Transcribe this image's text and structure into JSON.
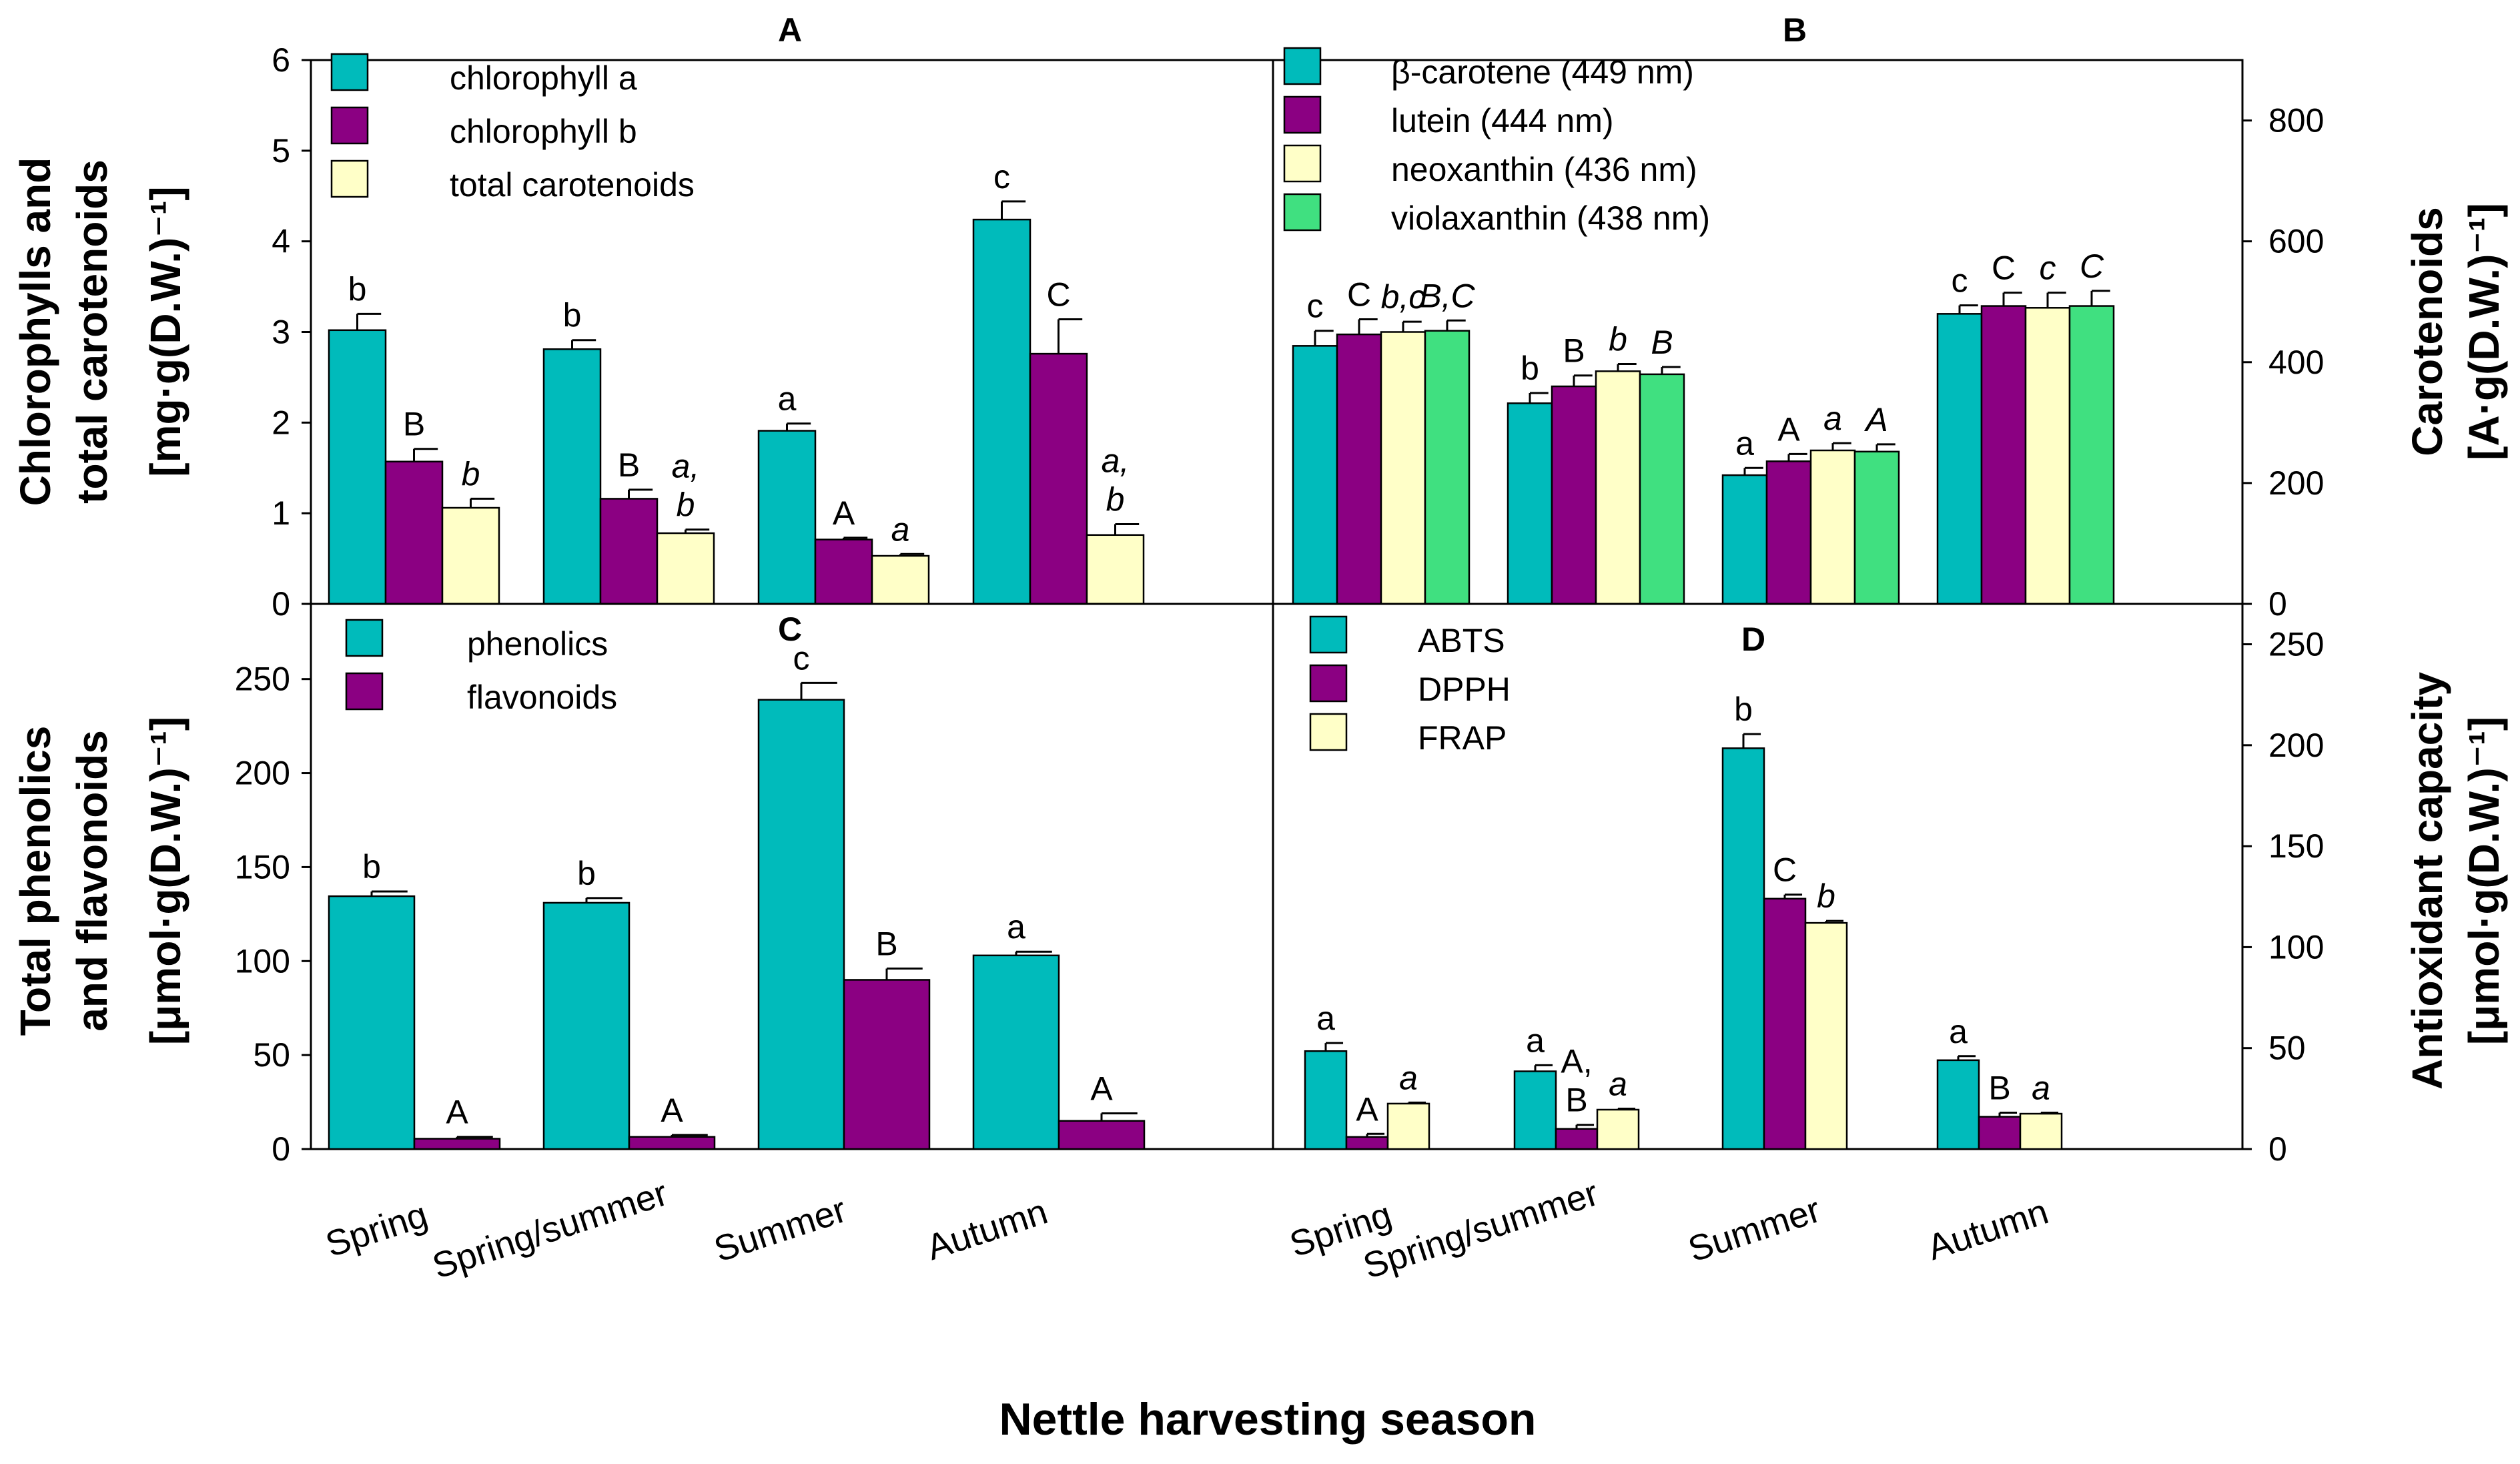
{
  "figure": {
    "x_title": "Nettle harvesting season",
    "colors": {
      "teal": "#00BBBB",
      "purple": "#8B0082",
      "cream": "#FFFFC8",
      "green": "#40E080"
    }
  },
  "chart_data": [
    {
      "id": "A",
      "type": "bar",
      "title": "A",
      "ylabel": [
        "Chlorophylls and",
        "total carotenoids",
        "[mg·g(D.W.)⁻¹]"
      ],
      "axis_side": "left",
      "ylim": [
        0,
        6
      ],
      "yticks": [
        "0",
        "1",
        "2",
        "3",
        "4",
        "5",
        "6"
      ],
      "categories": [
        "Spring",
        "Spring/summer",
        "Summer",
        "Autumn"
      ],
      "series": [
        {
          "name": "chlorophyll a",
          "color": "#00BBBB",
          "values": [
            3.02,
            2.81,
            1.91,
            4.24
          ],
          "errors": [
            0.18,
            0.1,
            0.08,
            0.2
          ],
          "labels": [
            "b",
            "b",
            "a",
            "c"
          ],
          "italic": false
        },
        {
          "name": "chlorophyll b",
          "color": "#8B0082",
          "values": [
            1.57,
            1.16,
            0.71,
            2.76
          ],
          "errors": [
            0.14,
            0.1,
            0.02,
            0.38
          ],
          "labels": [
            "B",
            "B",
            "A",
            "C"
          ],
          "italic": false
        },
        {
          "name": "total carotenoids",
          "color": "#FFFFC8",
          "values": [
            1.06,
            0.78,
            0.53,
            0.76
          ],
          "errors": [
            0.1,
            0.04,
            0.02,
            0.12
          ],
          "labels": [
            "b",
            "a,|b",
            "a",
            "a,|b"
          ],
          "italic": true
        }
      ]
    },
    {
      "id": "B",
      "type": "bar",
      "title": "B",
      "ylabel": [
        "Carotenoids",
        "[A·g(D.W.)⁻¹]"
      ],
      "axis_side": "right",
      "ylim": [
        0,
        900
      ],
      "yticks": [
        "0",
        "200",
        "400",
        "600",
        "800"
      ],
      "categories": [
        "Spring",
        "Spring/summer",
        "Summer",
        "Autumn"
      ],
      "series": [
        {
          "name": "β-carotene (449 nm)",
          "color": "#00BBBB",
          "values": [
            427,
            332,
            213,
            480
          ],
          "errors": [
            25,
            17,
            12,
            14
          ],
          "labels": [
            "c",
            "b",
            "a",
            "c"
          ],
          "italic": false
        },
        {
          "name": "lutein (444 nm)",
          "color": "#8B0082",
          "values": [
            446,
            360,
            236,
            493
          ],
          "errors": [
            25,
            18,
            12,
            22
          ],
          "labels": [
            "C",
            "B",
            "A",
            "C"
          ],
          "italic": false
        },
        {
          "name": "neoxanthin (436 nm)",
          "color": "#FFFFC8",
          "values": [
            450,
            385,
            254,
            490
          ],
          "errors": [
            17,
            12,
            12,
            25
          ],
          "labels": [
            "b,c",
            "b",
            "a",
            "c"
          ],
          "italic": true
        },
        {
          "name": "violaxanthin (438 nm)",
          "color": "#40E080",
          "values": [
            452,
            380,
            252,
            493
          ],
          "errors": [
            17,
            12,
            12,
            25
          ],
          "labels": [
            "B,C",
            "B",
            "A",
            "C"
          ],
          "italic": true
        }
      ]
    },
    {
      "id": "C",
      "type": "bar",
      "title": "C",
      "ylabel": [
        "Total phenolics",
        "and flavonoids",
        "[μmol·g(D.W.)⁻¹]"
      ],
      "axis_side": "left",
      "ylim": [
        0,
        290
      ],
      "yticks": [
        "0",
        "50",
        "100",
        "150",
        "200",
        "250"
      ],
      "categories": [
        "Spring",
        "Spring/summer",
        "Summer",
        "Autumn"
      ],
      "series": [
        {
          "name": "phenolics",
          "color": "#00BBBB",
          "values": [
            134.5,
            131,
            239,
            103
          ],
          "errors": [
            2.5,
            2.5,
            9,
            2
          ],
          "labels": [
            "b",
            "b",
            "c",
            "a"
          ],
          "italic": false
        },
        {
          "name": "flavonoids",
          "color": "#8B0082",
          "values": [
            5.5,
            6.5,
            90,
            15
          ],
          "errors": [
            1,
            1,
            6,
            4
          ],
          "labels": [
            "A",
            "A",
            "B",
            "A"
          ],
          "italic": false
        }
      ]
    },
    {
      "id": "D",
      "type": "bar",
      "title": "D",
      "ylabel": [
        "Antioxidant capacity",
        "[μmol·g(D.W.)⁻¹]"
      ],
      "axis_side": "right",
      "ylim": [
        0,
        270
      ],
      "yticks": [
        "0",
        "50",
        "100",
        "150",
        "200",
        "250"
      ],
      "categories": [
        "Spring",
        "Spring/summer",
        "Summer",
        "Autumn"
      ],
      "series": [
        {
          "name": "ABTS",
          "color": "#00BBBB",
          "values": [
            48.5,
            38.5,
            198.5,
            44
          ],
          "errors": [
            4,
            3,
            7,
            2
          ],
          "labels": [
            "a",
            "a",
            "b",
            "a"
          ],
          "italic": false
        },
        {
          "name": "DPPH",
          "color": "#8B0082",
          "values": [
            6,
            10,
            124,
            16
          ],
          "errors": [
            1.5,
            2,
            2,
            2
          ],
          "labels": [
            "A",
            "A,|B",
            "C",
            "B"
          ],
          "italic": false
        },
        {
          "name": "FRAP",
          "color": "#FFFFC8",
          "values": [
            22.5,
            19.5,
            112,
            17.5
          ],
          "errors": [
            0.5,
            0.5,
            1,
            0.5
          ],
          "labels": [
            "a",
            "a",
            "b",
            "a"
          ],
          "italic": true
        }
      ]
    }
  ]
}
